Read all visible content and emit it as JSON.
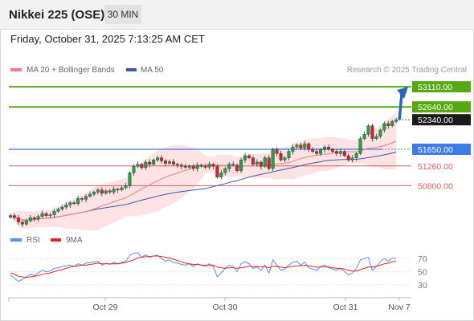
{
  "header": {
    "title": "Nikkei 225 (OSE)",
    "timeframe": "30 MIN"
  },
  "timestamp": "Friday, October 31, 2025 7:13:25 AM CET",
  "copyright": "Research © 2025 Trading Central",
  "colors": {
    "candle_up": "#22a146",
    "candle_down": "#d6222a",
    "ma20": "#f08080",
    "ma50": "#3a5a9e",
    "band_fill": "#fde3e3",
    "resistance": "#55aa11",
    "support": "#e05a5a",
    "pivot": "#3d7be8",
    "arrow": "#2c66b8",
    "rsi": "#5b8def",
    "rsi_ma": "#e0251f"
  },
  "chart_data": [
    {
      "type": "candlestick",
      "legend": [
        {
          "name": "MA 20 + Bollinger Bands",
          "color": "#f08080"
        },
        {
          "name": "MA 50",
          "color": "#3a5a9e"
        }
      ],
      "ylim": [
        49700,
        53450
      ],
      "x_labels": [
        "Oct 29",
        "Oct 30",
        "Oct 31",
        "Nov 7"
      ],
      "levels": [
        {
          "value": 53110,
          "label": "53110.00",
          "kind": "resistance"
        },
        {
          "value": 52640,
          "label": "52640.00",
          "kind": "resistance"
        },
        {
          "value": 52340,
          "label": "52340.00",
          "kind": "last"
        },
        {
          "value": 51650,
          "label": "51650.00",
          "kind": "pivot"
        },
        {
          "value": 51260,
          "label": "51260.00",
          "kind": "support"
        },
        {
          "value": 50800,
          "label": "50800.00",
          "kind": "support"
        }
      ],
      "close": [
        50100,
        50050,
        49950,
        49900,
        49980,
        50050,
        50020,
        50080,
        50150,
        50100,
        50120,
        50200,
        50250,
        50300,
        50350,
        50400,
        50380,
        50500,
        50480,
        50550,
        50600,
        50650,
        50700,
        50620,
        50680,
        50650,
        50720,
        50700,
        50750,
        50800,
        51100,
        51250,
        51300,
        51220,
        51350,
        51300,
        51400,
        51450,
        51380,
        51320,
        51360,
        51300,
        51280,
        51250,
        51230,
        51260,
        51200,
        51280,
        51250,
        51230,
        51300,
        51250,
        51000,
        51100,
        51200,
        51300,
        51280,
        51150,
        51400,
        51500,
        51450,
        51300,
        51350,
        51250,
        51450,
        51200,
        51650,
        51550,
        51400,
        51450,
        51600,
        51700,
        51750,
        51680,
        51780,
        51650,
        51600,
        51550,
        51640,
        51700,
        51650,
        51600,
        51550,
        51600,
        51500,
        51400,
        51450,
        51550,
        51900,
        52000,
        52200,
        51900,
        51950,
        52100,
        52250,
        52200,
        52300,
        52340
      ]
    },
    {
      "type": "line",
      "legend": [
        {
          "name": "RSI",
          "color": "#5b8def"
        },
        {
          "name": "9MA",
          "color": "#e0251f"
        }
      ],
      "ylim": [
        15,
        85
      ],
      "y_ticks": [
        70,
        50,
        30
      ],
      "rsi": [
        45,
        40,
        35,
        38,
        42,
        46,
        44,
        48,
        52,
        50,
        51,
        55,
        56,
        58,
        59,
        60,
        58,
        62,
        60,
        63,
        64,
        65,
        66,
        60,
        63,
        61,
        64,
        62,
        64,
        66,
        75,
        78,
        79,
        72,
        76,
        72,
        74,
        75,
        70,
        66,
        68,
        64,
        63,
        61,
        60,
        62,
        58,
        62,
        60,
        58,
        62,
        58,
        42,
        48,
        55,
        60,
        58,
        50,
        62,
        65,
        62,
        55,
        57,
        52,
        60,
        48,
        68,
        60,
        52,
        54,
        60,
        64,
        66,
        60,
        65,
        56,
        54,
        52,
        58,
        60,
        56,
        54,
        52,
        55,
        50,
        45,
        48,
        55,
        68,
        70,
        72,
        52,
        58,
        65,
        70,
        66,
        71,
        70
      ],
      "rsi_ma": [
        48,
        46,
        43,
        42,
        41,
        42,
        43,
        44,
        46,
        47,
        48,
        50,
        52,
        53,
        55,
        57,
        58,
        59,
        60,
        60,
        61,
        62,
        63,
        62,
        62,
        62,
        62,
        62,
        63,
        64,
        66,
        68,
        71,
        72,
        73,
        73,
        74,
        74,
        73,
        72,
        71,
        69,
        67,
        65,
        63,
        62,
        61,
        61,
        60,
        60,
        60,
        60,
        57,
        56,
        55,
        56,
        56,
        55,
        56,
        57,
        58,
        58,
        58,
        57,
        58,
        56,
        58,
        58,
        57,
        56,
        57,
        58,
        59,
        59,
        60,
        59,
        58,
        57,
        57,
        57,
        57,
        56,
        55,
        55,
        54,
        52,
        51,
        51,
        53,
        55,
        57,
        57,
        58,
        60,
        62,
        63,
        65,
        66
      ]
    }
  ]
}
